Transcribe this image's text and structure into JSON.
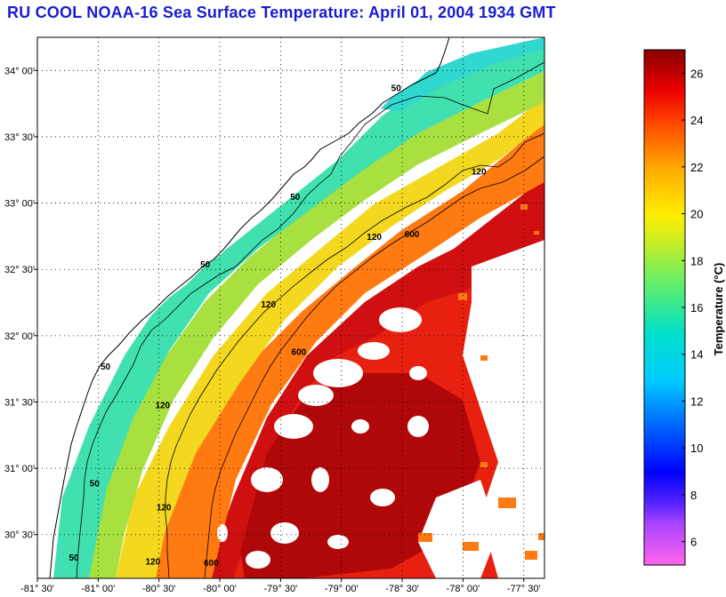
{
  "title": "RU COOL  NOAA-16  Sea Surface Temperature:  April 01, 2004 1934 GMT",
  "chart_data": {
    "type": "heatmap",
    "title": "RU COOL  NOAA-16  Sea Surface Temperature:  April 01, 2004 1934 GMT",
    "satellite": "NOAA-16",
    "lon_range": [
      -81.5,
      -77.33
    ],
    "lat_range": [
      30.17,
      34.25
    ],
    "lon_ticks": [
      {
        "value": -81.5,
        "label": "-81° 30'"
      },
      {
        "value": -81.0,
        "label": "-81° 00'"
      },
      {
        "value": -80.5,
        "label": "-80° 30'"
      },
      {
        "value": -80.0,
        "label": "-80° 00'"
      },
      {
        "value": -79.5,
        "label": "-79° 30'"
      },
      {
        "value": -79.0,
        "label": "-79° 00'"
      },
      {
        "value": -78.5,
        "label": "-78° 30'"
      },
      {
        "value": -78.0,
        "label": "-78° 00'"
      },
      {
        "value": -77.5,
        "label": "-77° 30'"
      }
    ],
    "lat_ticks": [
      {
        "value": 34.0,
        "label": "34° 00'"
      },
      {
        "value": 33.5,
        "label": "33° 30'"
      },
      {
        "value": 33.0,
        "label": "33° 00'"
      },
      {
        "value": 32.5,
        "label": "32° 30'"
      },
      {
        "value": 32.0,
        "label": "32° 00'"
      },
      {
        "value": 31.5,
        "label": "31° 30'"
      },
      {
        "value": 31.0,
        "label": "31° 00'"
      },
      {
        "value": 30.5,
        "label": "30° 30'"
      }
    ],
    "grid": "dotted",
    "colorbar": {
      "label": "Temperature (°C)",
      "range": [
        5,
        27
      ],
      "ticks": [
        6,
        8,
        10,
        12,
        14,
        16,
        18,
        20,
        22,
        24,
        26
      ]
    },
    "isobaths": [
      {
        "depth": "50",
        "labels": [
          {
            "lon": -78.55,
            "lat": 33.85
          },
          {
            "lon": -79.38,
            "lat": 33.03
          },
          {
            "lon": -80.12,
            "lat": 32.52
          },
          {
            "lon": -80.94,
            "lat": 31.75
          },
          {
            "lon": -81.03,
            "lat": 30.87
          },
          {
            "lon": -81.2,
            "lat": 30.31
          }
        ]
      },
      {
        "depth": "120",
        "labels": [
          {
            "lon": -77.87,
            "lat": 33.22
          },
          {
            "lon": -78.73,
            "lat": 32.73
          },
          {
            "lon": -79.6,
            "lat": 32.22
          },
          {
            "lon": -80.47,
            "lat": 31.46
          },
          {
            "lon": -80.46,
            "lat": 30.69
          },
          {
            "lon": -80.55,
            "lat": 30.28
          }
        ]
      },
      {
        "depth": "600",
        "labels": [
          {
            "lon": -78.42,
            "lat": 32.75
          },
          {
            "lon": -79.35,
            "lat": 31.86
          },
          {
            "lon": -80.07,
            "lat": 30.27
          }
        ]
      }
    ]
  }
}
